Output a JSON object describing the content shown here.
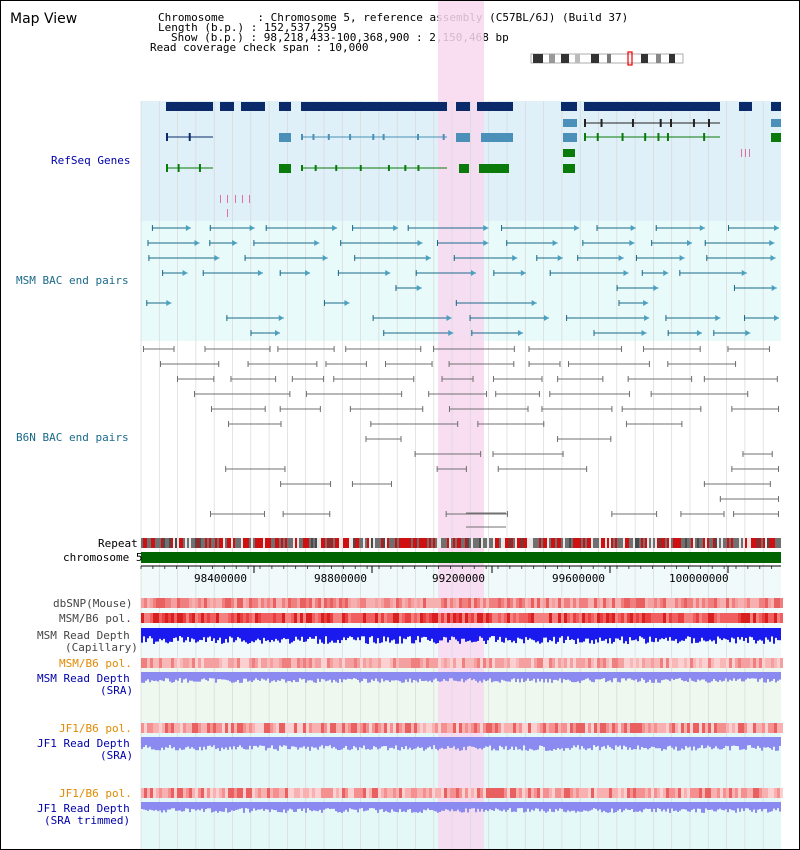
{
  "header": {
    "title": "Map View",
    "info_lines": [
      "Chromosome     : Chromosome 5, reference assembly (C57BL/6J) (Build 37)",
      "Length (b.p.) : 152,537,259",
      "Show (b.p.) : 98,218,433-100,368,900 : 2,150,468 bp",
      "Read coverage check span : 10,000"
    ]
  },
  "tracks": {
    "refseq": "RefSeq Genes",
    "msm_bac": "MSM BAC end pairs",
    "b6n_bac": "B6N BAC end pairs",
    "repeat": "Repeat",
    "chromosome": "chromosome 5",
    "dbsnp": "dbSNP(Mouse)",
    "msm_b6_pol": "MSM/B6 pol.",
    "msm_depth_cap_1": "MSM Read Depth",
    "msm_depth_cap_2": "(Capillary)",
    "msm_b6_pol_sra": "MSM/B6 pol.",
    "msm_depth_sra_1": "MSM Read Depth",
    "msm_depth_sra_2": "(SRA)",
    "jf1_b6_pol_1": "JF1/B6 pol.",
    "jf1_depth_1": "JF1 Read Depth",
    "jf1_depth_1b": "(SRA)",
    "jf1_b6_pol_2": "JF1/B6 pol.",
    "jf1_depth_2": "JF1 Read Depth",
    "jf1_depth_2b": "(SRA trimmed)"
  },
  "axis": {
    "ticks": [
      "98400000",
      "98800000",
      "99200000",
      "99600000",
      "100000000"
    ]
  },
  "colors": {
    "refseq_bg": "#dff0f8",
    "msm_bg": "#e8fafa",
    "highlight": "#f8d8f0",
    "msm_line": "#1a6a8a",
    "b6n_line": "#707070",
    "gene_dark": "#0a2a6a",
    "gene_mid": "#4a90b8",
    "gene_green": "#0a7a0a",
    "chrom": "#006400",
    "depth_blue": "#1a1aee",
    "depth_light": "#8a8af0",
    "label_blue": "#0000aa",
    "label_teal": "#1a6a8a",
    "label_orange": "#e08a00"
  }
}
